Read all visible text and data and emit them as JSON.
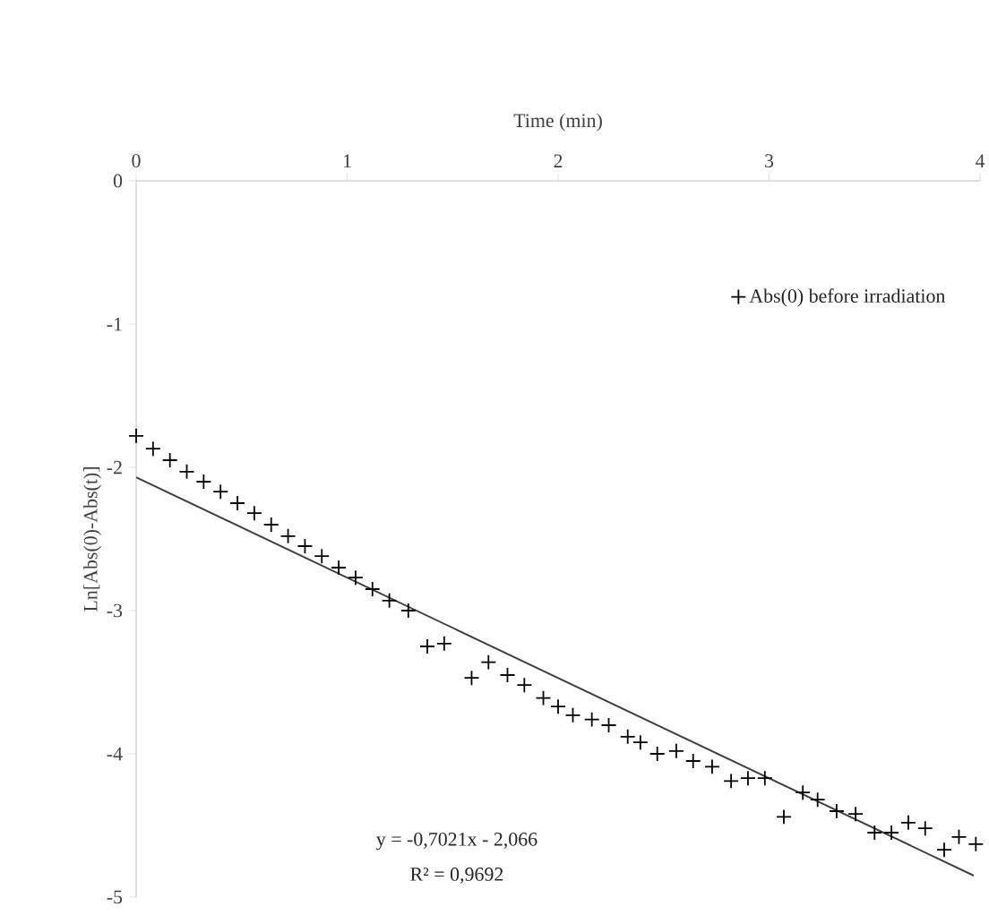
{
  "chart_data": {
    "type": "scatter",
    "xlabel": "Time (min)",
    "ylabel": "Ln[Abs(0)-Abs(t)]",
    "xlim": [
      0,
      4
    ],
    "xticks": [
      0,
      1,
      2,
      3,
      4
    ],
    "ylim": [
      -5,
      0
    ],
    "yticks": [
      -5,
      -4,
      -3,
      -2,
      -1,
      0
    ],
    "legend": "top right",
    "grid": false,
    "annotations": [
      "y = -0,7021x - 2,066",
      "R² = 0,9692"
    ],
    "series": [
      {
        "name": "Abs(0) before irradiation",
        "marker": "cross",
        "color": "#000000",
        "x": [
          0,
          0.08,
          0.16,
          0.24,
          0.32,
          0.4,
          0.48,
          0.56,
          0.64,
          0.72,
          0.8,
          0.88,
          0.96,
          1.04,
          1.12,
          1.2,
          1.29,
          1.38,
          1.46,
          1.59,
          1.67,
          1.76,
          1.84,
          1.93,
          2.0,
          2.07,
          2.16,
          2.24,
          2.33,
          2.39,
          2.47,
          2.56,
          2.64,
          2.73,
          2.82,
          2.9,
          2.98,
          3.07,
          3.16,
          3.23,
          3.32,
          3.41,
          3.5,
          3.58,
          3.66,
          3.74,
          3.83,
          3.9,
          3.98
        ],
        "values": [
          -1.78,
          -1.87,
          -1.95,
          -2.03,
          -2.1,
          -2.17,
          -2.25,
          -2.32,
          -2.4,
          -2.48,
          -2.55,
          -2.62,
          -2.7,
          -2.77,
          -2.85,
          -2.93,
          -3.0,
          -3.25,
          -3.23,
          -3.47,
          -3.36,
          -3.45,
          -3.52,
          -3.61,
          -3.67,
          -3.73,
          -3.76,
          -3.8,
          -3.88,
          -3.92,
          -4.0,
          -3.98,
          -4.05,
          -4.09,
          -4.19,
          -4.17,
          -4.17,
          -4.44,
          -4.27,
          -4.32,
          -4.4,
          -4.42,
          -4.55,
          -4.55,
          -4.48,
          -4.52,
          -4.67,
          -4.58,
          -4.63
        ]
      },
      {
        "type": "line",
        "color": "#404040",
        "line_style": "solid",
        "x": [
          0,
          3.97
        ],
        "values": [
          -2.07,
          -4.85
        ]
      }
    ]
  }
}
